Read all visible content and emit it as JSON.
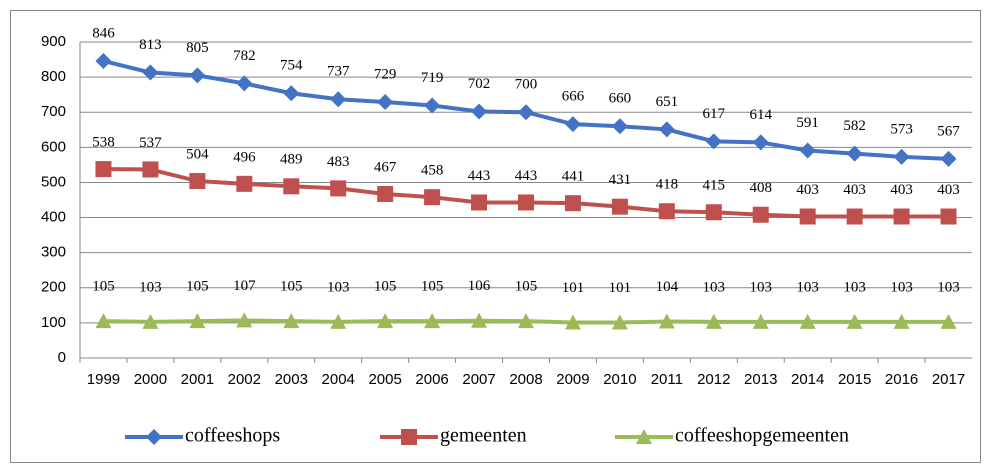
{
  "chart_data": {
    "type": "line",
    "categories": [
      "1999",
      "2000",
      "2001",
      "2002",
      "2003",
      "2004",
      "2005",
      "2006",
      "2007",
      "2008",
      "2009",
      "2010",
      "2011",
      "2012",
      "2013",
      "2014",
      "2015",
      "2016",
      "2017"
    ],
    "series": [
      {
        "name": "coffeeshops",
        "color": "#4472c4",
        "marker": "diamond",
        "values": [
          846,
          813,
          805,
          782,
          754,
          737,
          729,
          719,
          702,
          700,
          666,
          660,
          651,
          617,
          614,
          591,
          582,
          573,
          567
        ]
      },
      {
        "name": "gemeenten",
        "color": "#c0504d",
        "marker": "square",
        "values": [
          538,
          537,
          504,
          496,
          489,
          483,
          467,
          458,
          443,
          443,
          441,
          431,
          418,
          415,
          408,
          403,
          403,
          403,
          403
        ]
      },
      {
        "name": "coffeeshopgemeenten",
        "color": "#9bbb59",
        "marker": "triangle",
        "values": [
          105,
          103,
          105,
          107,
          105,
          103,
          105,
          105,
          106,
          105,
          101,
          101,
          104,
          103,
          103,
          103,
          103,
          103,
          103
        ]
      }
    ],
    "ylim": [
      0,
      900
    ],
    "yticks": [
      0,
      100,
      200,
      300,
      400,
      500,
      600,
      700,
      800,
      900
    ],
    "grid": true,
    "legend": "bottom"
  }
}
